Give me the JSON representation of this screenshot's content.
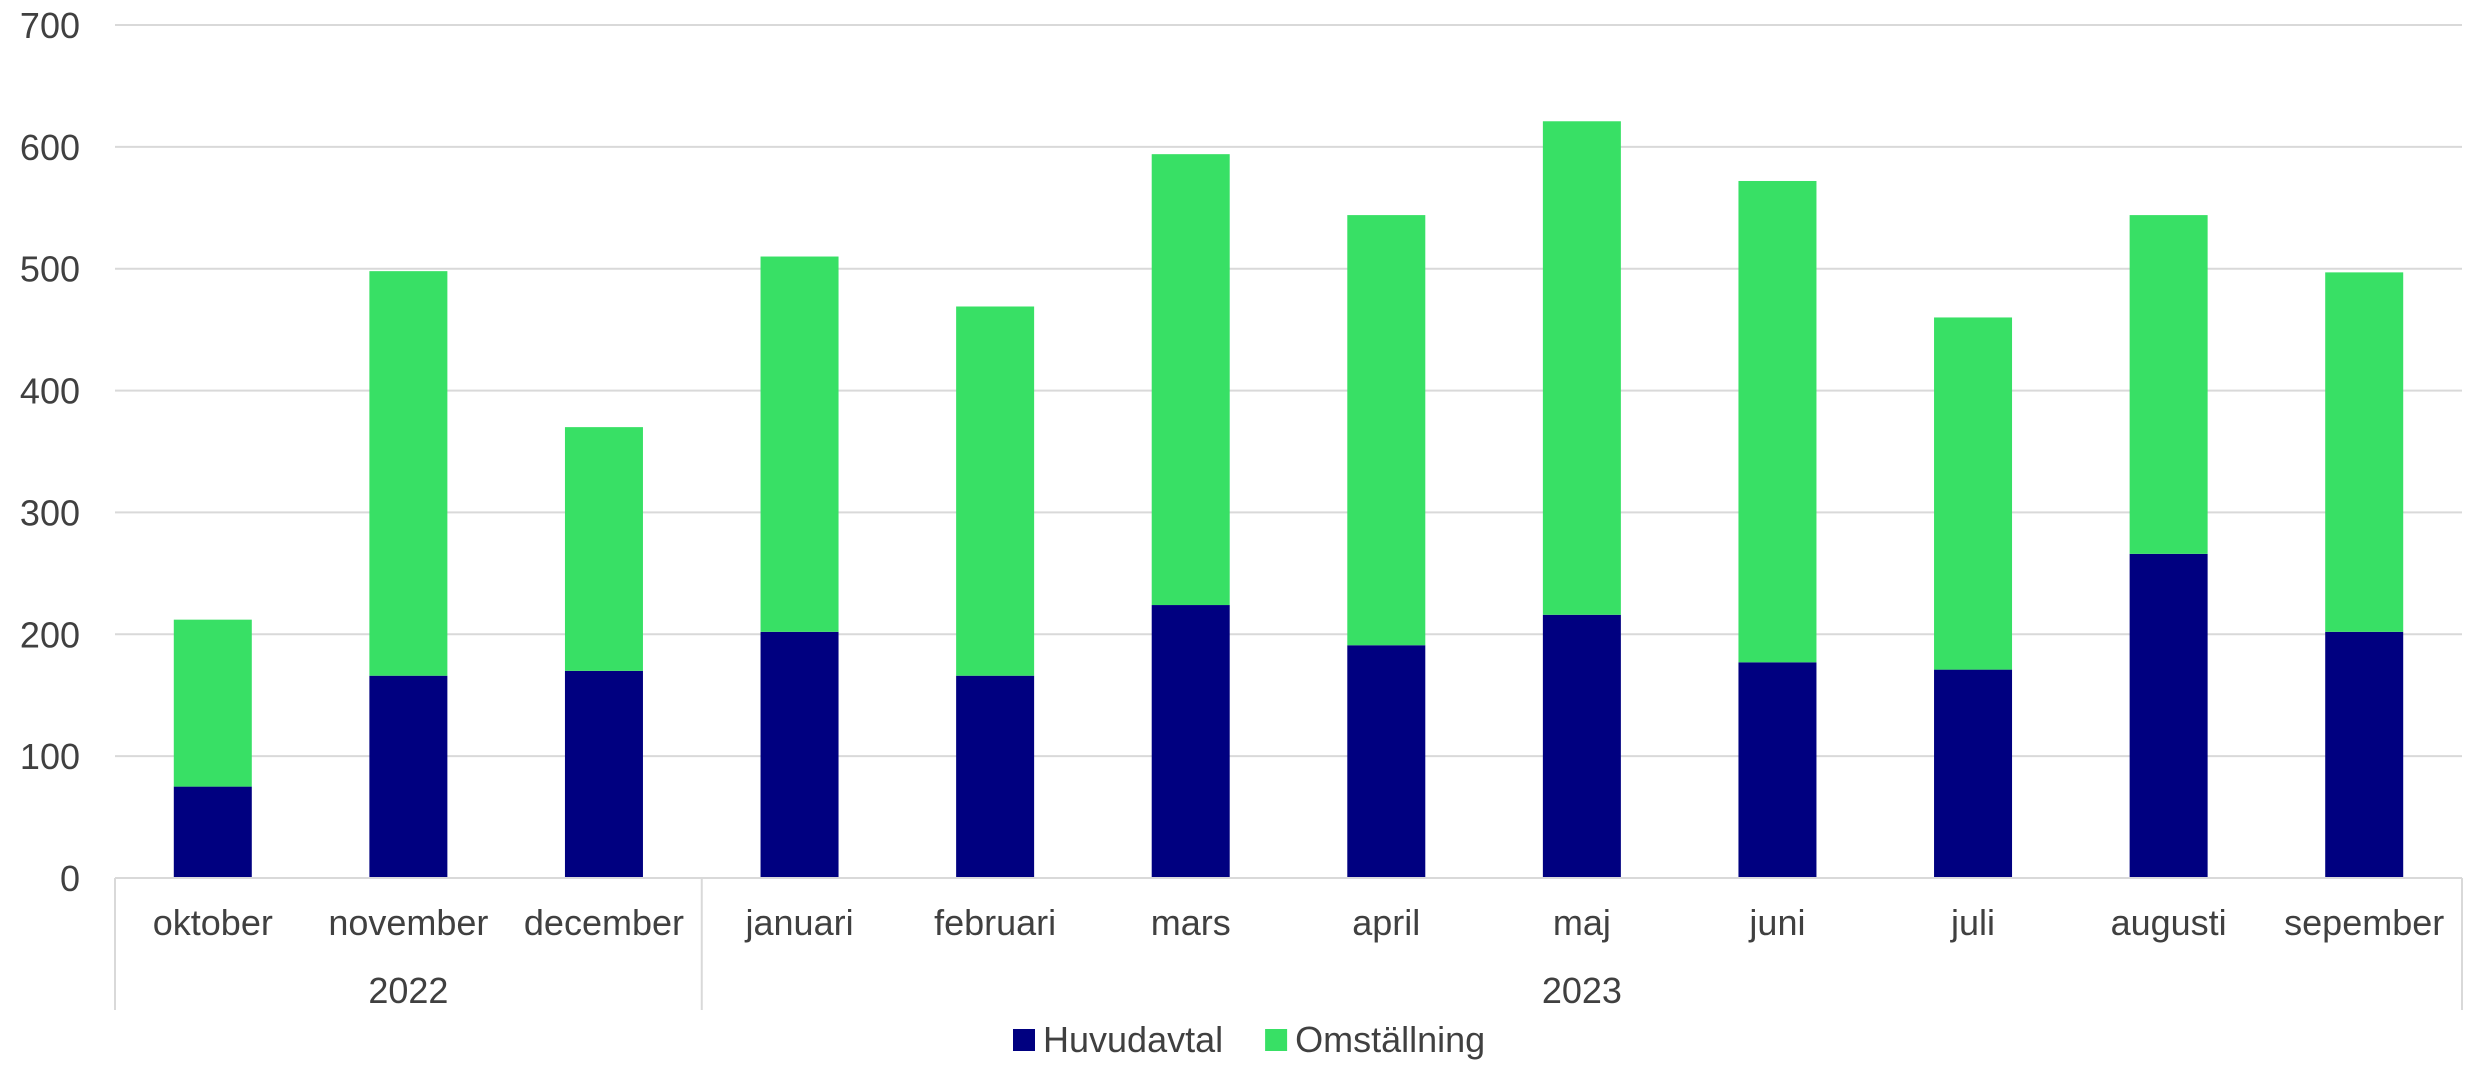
{
  "chart_data": {
    "type": "bar",
    "stacked": true,
    "categories": [
      "oktober",
      "november",
      "december",
      "januari",
      "februari",
      "mars",
      "april",
      "maj",
      "juni",
      "juli",
      "augusti",
      "sepember"
    ],
    "category_groups": [
      {
        "label": "2022",
        "count": 3
      },
      {
        "label": "2023",
        "count": 9
      }
    ],
    "series": [
      {
        "name": "Huvudavtal",
        "color": "#000080",
        "values": [
          75,
          166,
          170,
          202,
          166,
          224,
          191,
          216,
          177,
          171,
          266,
          202
        ]
      },
      {
        "name": "Omställning",
        "color": "#38E065",
        "values": [
          137,
          332,
          200,
          308,
          303,
          370,
          353,
          405,
          395,
          289,
          278,
          295
        ]
      }
    ],
    "ylim": [
      0,
      700
    ],
    "yticks": [
      0,
      100,
      200,
      300,
      400,
      500,
      600,
      700
    ],
    "grid": true,
    "legend_position": "bottom"
  }
}
